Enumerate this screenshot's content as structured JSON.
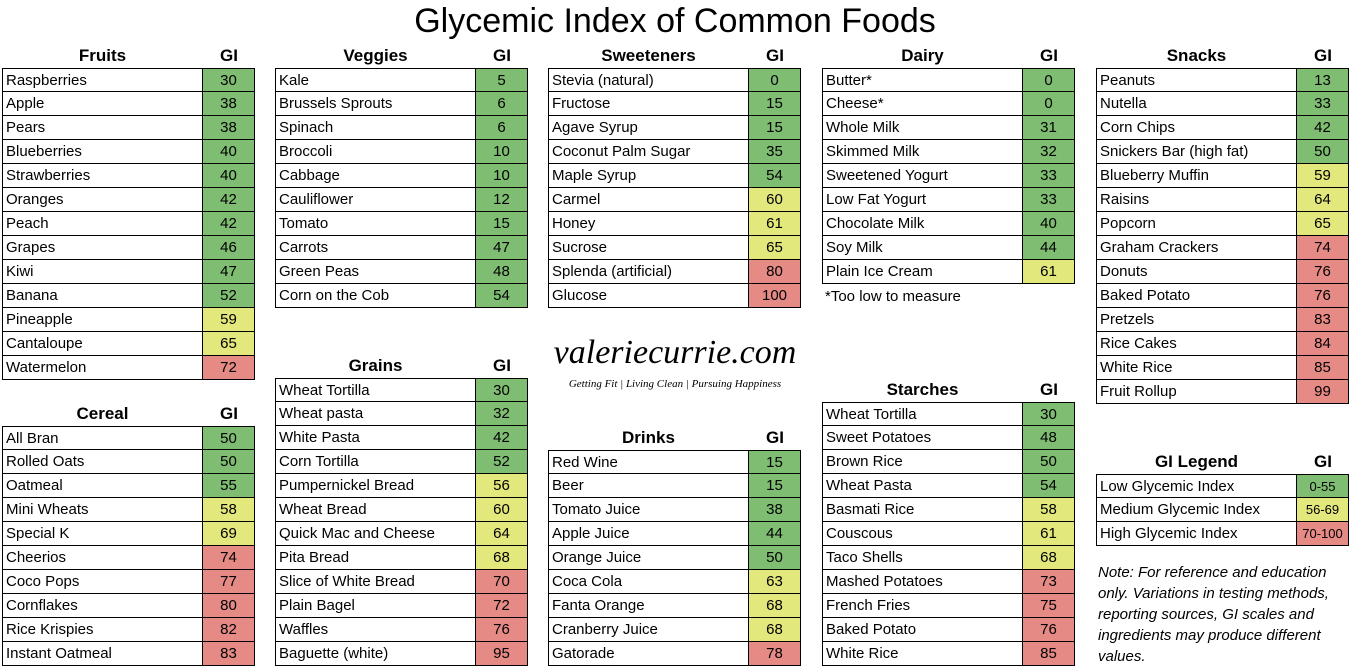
{
  "title": "Glycemic Index of Common Foods",
  "logo": {
    "name": "valeriecurrie.com",
    "tagline": "Getting Fit | Living Clean | Pursuing Happiness"
  },
  "tables": [
    {
      "heading": "Fruits",
      "gi_heading": "GI",
      "rows": [
        [
          "Raspberries",
          30
        ],
        [
          "Apple",
          38
        ],
        [
          "Pears",
          38
        ],
        [
          "Blueberries",
          40
        ],
        [
          "Strawberries",
          40
        ],
        [
          "Oranges",
          42
        ],
        [
          "Peach",
          42
        ],
        [
          "Grapes",
          46
        ],
        [
          "Kiwi",
          47
        ],
        [
          "Banana",
          52
        ],
        [
          "Pineapple",
          59
        ],
        [
          "Cantaloupe",
          65
        ],
        [
          "Watermelon",
          72
        ]
      ]
    },
    {
      "heading": "Veggies",
      "gi_heading": "GI",
      "rows": [
        [
          "Kale",
          5
        ],
        [
          "Brussels Sprouts",
          6
        ],
        [
          "Spinach",
          6
        ],
        [
          "Broccoli",
          10
        ],
        [
          "Cabbage",
          10
        ],
        [
          "Cauliflower",
          12
        ],
        [
          "Tomato",
          15
        ],
        [
          "Carrots",
          47
        ],
        [
          "Green Peas",
          48
        ],
        [
          "Corn on the Cob",
          54
        ]
      ]
    },
    {
      "heading": "Sweeteners",
      "gi_heading": "GI",
      "rows": [
        [
          "Stevia (natural)",
          0
        ],
        [
          "Fructose",
          15
        ],
        [
          "Agave Syrup",
          15
        ],
        [
          "Coconut Palm Sugar",
          35
        ],
        [
          "Maple Syrup",
          54
        ],
        [
          "Carmel",
          60
        ],
        [
          "Honey",
          61
        ],
        [
          "Sucrose",
          65
        ],
        [
          "Splenda (artificial)",
          80
        ],
        [
          "Glucose",
          100
        ]
      ]
    },
    {
      "heading": "Dairy",
      "gi_heading": "GI",
      "rows": [
        [
          "Butter*",
          0
        ],
        [
          "Cheese*",
          0
        ],
        [
          "Whole Milk",
          31
        ],
        [
          "Skimmed Milk",
          32
        ],
        [
          "Sweetened Yogurt",
          33
        ],
        [
          "Low Fat Yogurt",
          33
        ],
        [
          "Chocolate Milk",
          40
        ],
        [
          "Soy Milk",
          44
        ],
        [
          "Plain Ice Cream",
          61
        ]
      ],
      "note": "*Too low to measure"
    },
    {
      "heading": "Snacks",
      "gi_heading": "GI",
      "rows": [
        [
          "Peanuts",
          13
        ],
        [
          "Nutella",
          33
        ],
        [
          "Corn Chips",
          42
        ],
        [
          "Snickers Bar (high fat)",
          50
        ],
        [
          "Blueberry Muffin",
          59
        ],
        [
          "Raisins",
          64
        ],
        [
          "Popcorn",
          65
        ],
        [
          "Graham Crackers",
          74
        ],
        [
          "Donuts",
          76
        ],
        [
          "Baked Potato",
          76
        ],
        [
          "Pretzels",
          83
        ],
        [
          "Rice Cakes",
          84
        ],
        [
          "White Rice",
          85
        ],
        [
          "Fruit Rollup",
          99
        ]
      ]
    },
    {
      "heading": "Cereal",
      "gi_heading": "GI",
      "rows": [
        [
          "All Bran",
          50
        ],
        [
          "Rolled Oats",
          50
        ],
        [
          "Oatmeal",
          55
        ],
        [
          "Mini Wheats",
          58
        ],
        [
          "Special K",
          69
        ],
        [
          "Cheerios",
          74
        ],
        [
          "Coco Pops",
          77
        ],
        [
          "Cornflakes",
          80
        ],
        [
          "Rice Krispies",
          82
        ],
        [
          "Instant Oatmeal",
          83
        ]
      ]
    },
    {
      "heading": "Grains",
      "gi_heading": "GI",
      "rows": [
        [
          "Wheat Tortilla",
          30
        ],
        [
          "Wheat pasta",
          32
        ],
        [
          "White Pasta",
          42
        ],
        [
          "Corn Tortilla",
          52
        ],
        [
          "Pumpernickel Bread",
          56
        ],
        [
          "Wheat Bread",
          60
        ],
        [
          "Quick Mac and Cheese",
          64
        ],
        [
          "Pita Bread",
          68
        ],
        [
          "Slice of White Bread",
          70
        ],
        [
          "Plain Bagel",
          72
        ],
        [
          "Waffles",
          76
        ],
        [
          "Baguette (white)",
          95
        ]
      ]
    },
    {
      "heading": "Drinks",
      "gi_heading": "GI",
      "rows": [
        [
          "Red Wine",
          15
        ],
        [
          "Beer",
          15
        ],
        [
          "Tomato Juice",
          38
        ],
        [
          "Apple Juice",
          44
        ],
        [
          "Orange Juice",
          50
        ],
        [
          "Coca Cola",
          63
        ],
        [
          "Fanta Orange",
          68
        ],
        [
          "Cranberry Juice",
          68
        ],
        [
          "Gatorade",
          78
        ]
      ]
    },
    {
      "heading": "Starches",
      "gi_heading": "GI",
      "rows": [
        [
          "Wheat Tortilla",
          30
        ],
        [
          "Sweet Potatoes",
          48
        ],
        [
          "Brown Rice",
          50
        ],
        [
          "Wheat Pasta",
          54
        ],
        [
          "Basmati Rice",
          58
        ],
        [
          "Couscous",
          61
        ],
        [
          "Taco Shells",
          68
        ],
        [
          "Mashed Potatoes",
          73
        ],
        [
          "French Fries",
          75
        ],
        [
          "Baked Potato",
          76
        ],
        [
          "White Rice",
          85
        ]
      ]
    }
  ],
  "legend": {
    "heading": "GI Legend",
    "gi_heading": "GI",
    "rows": [
      {
        "label": "Low Glycemic Index",
        "range": "0-55",
        "color": "#7fbd72"
      },
      {
        "label": "Medium Glycemic Index",
        "range": "56-69",
        "color": "#e3e87c"
      },
      {
        "label": "High Glycemic Index",
        "range": "70-100",
        "color": "#e68a86"
      }
    ]
  },
  "note": "Note: For reference and education only.  Variations in testing methods, reporting sources, GI scales and ingredients may produce different values."
}
